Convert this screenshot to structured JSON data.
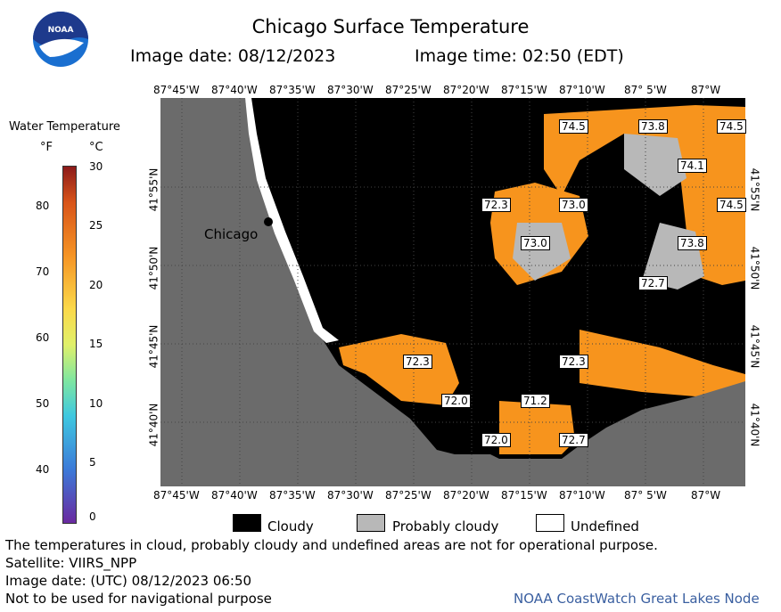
{
  "header": {
    "title": "Chicago Surface Temperature",
    "image_date": "Image date: 08/12/2023",
    "image_time": "Image time: 02:50 (EDT)"
  },
  "logo": {
    "text": "NOAA",
    "colors": {
      "outer": "#1a6fd0",
      "inner": "#1e3a8c",
      "gull": "#ffffff"
    }
  },
  "legend": {
    "title": "Water Temperature",
    "unit_f": "°F",
    "unit_c": "°C",
    "f_ticks": [
      "80",
      "70",
      "60",
      "50",
      "40"
    ],
    "c_ticks": [
      "30",
      "25",
      "20",
      "15",
      "10",
      "5",
      "0"
    ]
  },
  "map": {
    "lon_labels": [
      "87°45'W",
      "87°40'W",
      "87°35'W",
      "87°30'W",
      "87°25'W",
      "87°20'W",
      "87°15'W",
      "87°10'W",
      "87° 5'W",
      "87°W"
    ],
    "lat_labels": [
      "41°55'N",
      "41°50'N",
      "41°45'N",
      "41°40'N"
    ],
    "city": "Chicago",
    "colors": {
      "land": "#6b6b6b",
      "cloudy": "#000000",
      "probably_cloudy": "#b8b8b8",
      "undefined": "#ffffff",
      "water_warm": "#f7941d"
    },
    "temp_labels": [
      "74.5",
      "73.8",
      "74.5",
      "74.1",
      "72.3",
      "73.0",
      "74.5",
      "73.0",
      "73.8",
      "72.7",
      "72.3",
      "72.3",
      "72.0",
      "71.2",
      "72.0",
      "72.7"
    ]
  },
  "key": {
    "cloudy": "Cloudy",
    "probably_cloudy": "Probably cloudy",
    "undefined": "Undefined"
  },
  "footer": {
    "note": "The temperatures in cloud, probably cloudy and undefined areas are not for operational purpose.",
    "satellite": "Satellite: VIIRS_NPP",
    "utc_date": "Image date: (UTC) 08/12/2023  06:50",
    "nav": "Not to be used for navigational purpose",
    "credit": "NOAA CoastWatch Great Lakes Node"
  }
}
